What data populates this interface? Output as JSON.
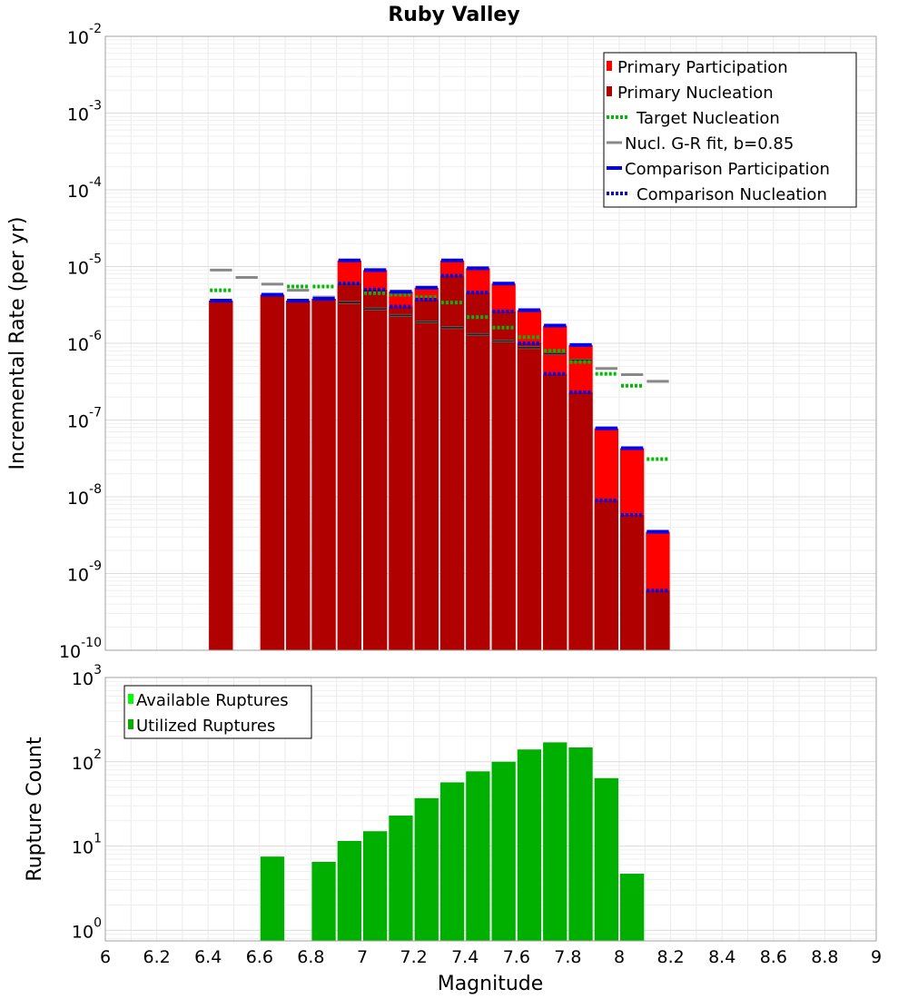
{
  "chart_data": [
    {
      "type": "bar",
      "title": "Ruby Valley",
      "ylabel": "Incremental Rate (per yr)",
      "xlabel": "",
      "xlim": [
        6,
        9
      ],
      "ylim": [
        1e-10,
        0.01
      ],
      "yscale": "log",
      "y_tick_labels": [
        {
          "base": "10",
          "exp": "-2"
        },
        {
          "base": "10",
          "exp": "-3"
        },
        {
          "base": "10",
          "exp": "-4"
        },
        {
          "base": "10",
          "exp": "-5"
        },
        {
          "base": "10",
          "exp": "-6"
        },
        {
          "base": "10",
          "exp": "-7"
        },
        {
          "base": "10",
          "exp": "-8"
        },
        {
          "base": "10",
          "exp": "-9"
        },
        {
          "base": "10",
          "exp": "-10"
        }
      ],
      "grid": true,
      "legend_position": "top-right",
      "legend": [
        "Primary Participation",
        "Primary Nucleation",
        "Target Nucleation",
        "Nucl. G-R fit, b=0.85",
        "Comparison Participation",
        "Comparison Nucleation"
      ],
      "colors": {
        "primary_participation": "#ff0000",
        "primary_nucleation": "#b00000",
        "target_nucleation": "#00bb00",
        "gr_fit": "#888888",
        "comparison_participation": "#0000ee",
        "comparison_nucleation": "#0000ee",
        "nucleation_dash_dark": "#222222"
      },
      "bin_width": 0.1,
      "x": [
        6.45,
        6.65,
        6.75,
        6.85,
        6.95,
        7.05,
        7.15,
        7.25,
        7.35,
        7.45,
        7.55,
        7.65,
        7.75,
        7.85,
        7.95,
        8.05,
        8.15
      ],
      "series": [
        {
          "name": "Primary Participation",
          "values": [
            3.6e-06,
            4.3e-06,
            3.6e-06,
            3.8e-06,
            1.2e-05,
            9e-06,
            4.7e-06,
            5.3e-06,
            1.2e-05,
            9.5e-06,
            6e-06,
            2.7e-06,
            1.7e-06,
            9.5e-07,
            7.8e-08,
            4.3e-08,
            3.5e-09
          ]
        },
        {
          "name": "Primary Nucleation",
          "values": [
            3.6e-06,
            4.3e-06,
            3.6e-06,
            3.8e-06,
            6e-06,
            5e-06,
            3e-06,
            3.7e-06,
            7.6e-06,
            4.6e-06,
            2.6e-06,
            1e-06,
            4e-07,
            2.3e-07,
            9e-09,
            5.8e-09,
            6e-10
          ]
        },
        {
          "name": "Target Nucleation",
          "values": [
            4.9e-06,
            null,
            5.5e-06,
            5.5e-06,
            6e-06,
            4.5e-06,
            4.3e-06,
            4e-06,
            3.4e-06,
            2.2e-06,
            1.6e-06,
            1.2e-06,
            8e-07,
            5.7e-07,
            4e-07,
            2.8e-07,
            3.1e-08
          ]
        },
        {
          "name": "Nucl. G-R fit, b=0.85",
          "x": [
            6.45,
            6.55,
            6.65,
            6.75,
            6.85,
            6.95,
            7.05,
            7.15,
            7.25,
            7.35,
            7.45,
            7.55,
            7.65,
            7.75,
            7.85,
            7.95,
            8.05,
            8.15
          ],
          "values": [
            9e-06,
            7.2e-06,
            5.9e-06,
            4.9e-06,
            4e-06,
            3.4e-06,
            2.8e-06,
            2.3e-06,
            1.9e-06,
            1.6e-06,
            1.3e-06,
            1.07e-06,
            8.8e-07,
            7.3e-07,
            6e-07,
            4.7e-07,
            3.9e-07,
            3.2e-07
          ]
        },
        {
          "name": "Comparison Participation",
          "values": [
            3.6e-06,
            4.3e-06,
            3.6e-06,
            3.8e-06,
            1.2e-05,
            9e-06,
            4.7e-06,
            5.3e-06,
            1.2e-05,
            9.5e-06,
            6e-06,
            2.7e-06,
            1.7e-06,
            9.5e-07,
            7.8e-08,
            4.3e-08,
            3.5e-09
          ]
        },
        {
          "name": "Comparison Nucleation",
          "values": [
            null,
            null,
            null,
            null,
            6e-06,
            5e-06,
            3e-06,
            3.7e-06,
            7.6e-06,
            4.6e-06,
            2.6e-06,
            1e-06,
            4e-07,
            2.3e-07,
            9e-09,
            5.8e-09,
            6e-10
          ]
        }
      ],
      "dark_nucleation_marks": [
        null,
        null,
        null,
        null,
        3.4e-06,
        2.8e-06,
        2.3e-06,
        1.9e-06,
        1.6e-06,
        1.3e-06,
        1.07e-06,
        8.8e-07,
        7.3e-07,
        6e-07,
        null,
        null,
        null
      ]
    },
    {
      "type": "bar",
      "title": "",
      "ylabel": "Rupture Count",
      "xlabel": "Magnitude",
      "xlim": [
        6,
        9
      ],
      "ylim": [
        0.75,
        1000
      ],
      "yscale": "log",
      "y_tick_labels": [
        {
          "base": "10",
          "exp": "3"
        },
        {
          "base": "10",
          "exp": "2"
        },
        {
          "base": "10",
          "exp": "1"
        },
        {
          "base": "10",
          "exp": "0"
        }
      ],
      "x_tick_labels": [
        "6",
        "6.2",
        "6.4",
        "6.6",
        "6.8",
        "7",
        "7.2",
        "7.4",
        "7.6",
        "7.8",
        "8",
        "8.2",
        "8.4",
        "8.6",
        "8.8",
        "9"
      ],
      "grid": true,
      "legend_position": "top-left",
      "legend": [
        "Available Ruptures",
        "Utilized Ruptures"
      ],
      "colors": {
        "available": "#00ff00",
        "utilized": "#00b000"
      },
      "bin_width": 0.1,
      "x": [
        6.65,
        6.85,
        6.95,
        7.05,
        7.15,
        7.25,
        7.35,
        7.45,
        7.55,
        7.65,
        7.75,
        7.85,
        7.95,
        8.05
      ],
      "series": [
        {
          "name": "Utilized Ruptures",
          "values": [
            7.5,
            6.5,
            11.5,
            15,
            23,
            37,
            57,
            77,
            100,
            140,
            170,
            148,
            64,
            4.7
          ]
        }
      ]
    }
  ]
}
